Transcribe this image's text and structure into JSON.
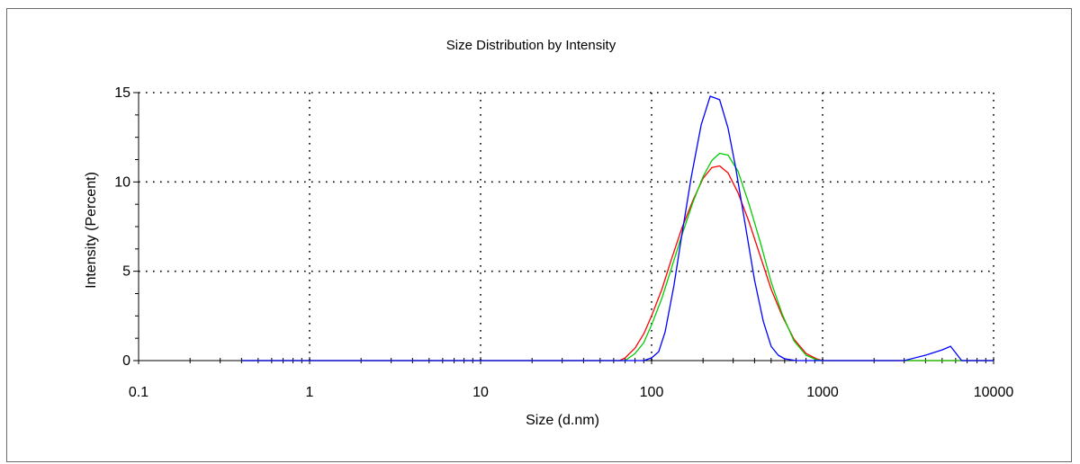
{
  "chart_data": {
    "type": "line",
    "title": "Size Distribution by Intensity",
    "xlabel": "Size (d.nm)",
    "ylabel": "Intensity (Percent)",
    "x_scale": "log",
    "xlim": [
      0.1,
      10000
    ],
    "ylim": [
      0,
      15
    ],
    "x_ticks": [
      0.1,
      1,
      10,
      100,
      1000,
      10000
    ],
    "x_tick_labels": [
      "0.1",
      "1",
      "10",
      "100",
      "1000",
      "10000"
    ],
    "y_ticks": [
      0,
      5,
      10,
      15
    ],
    "y_tick_labels": [
      "0",
      "5",
      "10",
      "15"
    ],
    "grid": true,
    "grid_style": "dotted",
    "legend": "none",
    "series": [
      {
        "color": "#ff0000",
        "x": [
          0.4,
          65,
          70,
          80,
          90,
          100,
          115,
          130,
          150,
          175,
          200,
          225,
          250,
          280,
          320,
          370,
          430,
          500,
          580,
          680,
          800,
          920,
          1000,
          10000
        ],
        "y": [
          0,
          0,
          0.15,
          0.7,
          1.5,
          2.5,
          4.0,
          5.6,
          7.4,
          9.0,
          10.2,
          10.8,
          10.9,
          10.5,
          9.4,
          7.8,
          5.9,
          4.0,
          2.5,
          1.2,
          0.4,
          0.1,
          0,
          0
        ]
      },
      {
        "color": "#00cc00",
        "x": [
          0.4,
          70,
          80,
          90,
          100,
          115,
          130,
          150,
          175,
          200,
          225,
          250,
          280,
          320,
          370,
          430,
          500,
          580,
          680,
          800,
          920,
          1000,
          10000
        ],
        "y": [
          0,
          0,
          0.4,
          1.0,
          2.0,
          3.5,
          5.1,
          7.0,
          8.9,
          10.3,
          11.2,
          11.6,
          11.5,
          10.6,
          8.8,
          6.7,
          4.4,
          2.6,
          1.1,
          0.3,
          0.05,
          0,
          0
        ]
      },
      {
        "color": "#0000ff",
        "x": [
          0.4,
          90,
          100,
          110,
          120,
          135,
          150,
          170,
          195,
          220,
          250,
          280,
          310,
          350,
          400,
          450,
          500,
          550,
          600,
          700,
          3000,
          4000,
          5000,
          5600,
          6500,
          10000
        ],
        "y": [
          0,
          0,
          0.15,
          0.5,
          1.6,
          4.2,
          7.0,
          10.2,
          13.2,
          14.8,
          14.6,
          13.0,
          10.8,
          7.8,
          4.5,
          2.2,
          0.8,
          0.3,
          0.1,
          0,
          0,
          0.3,
          0.6,
          0.8,
          0,
          0
        ]
      }
    ]
  }
}
